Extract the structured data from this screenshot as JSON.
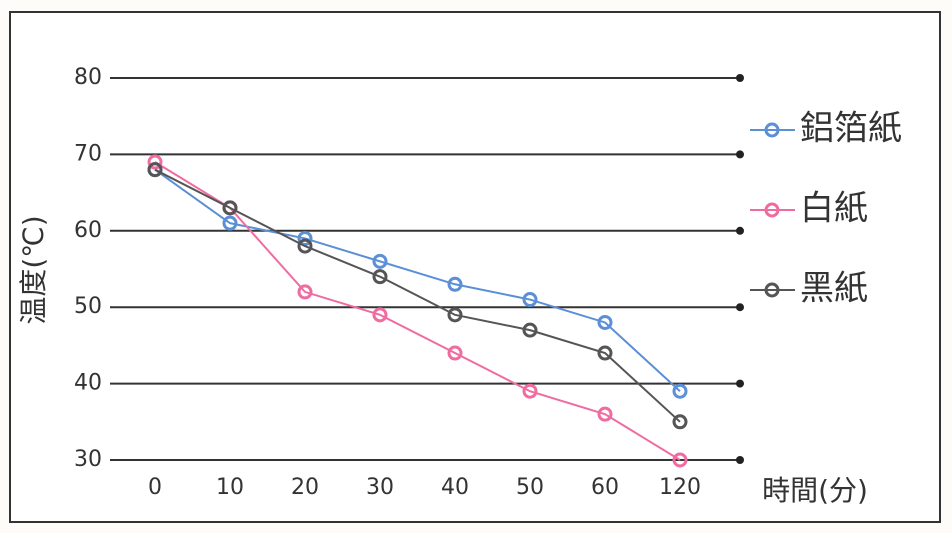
{
  "chart_data": {
    "type": "line",
    "x_label": "時間(分)",
    "y_label": "温度(℃)",
    "categories": [
      "0",
      "10",
      "20",
      "30",
      "40",
      "50",
      "60",
      "120"
    ],
    "series": [
      {
        "name": "鋁箔紙",
        "color": "#5b8fd6",
        "values": [
          68,
          61,
          59,
          56,
          53,
          51,
          48,
          39
        ]
      },
      {
        "name": "白紙",
        "color": "#f06ca0",
        "values": [
          69,
          63,
          52,
          49,
          44,
          39,
          36,
          30
        ]
      },
      {
        "name": "黑紙",
        "color": "#555555",
        "values": [
          68,
          63,
          58,
          54,
          49,
          47,
          44,
          35
        ]
      }
    ],
    "ylim": [
      30,
      80
    ],
    "yticks": [
      30,
      40,
      50,
      60,
      70,
      80
    ],
    "grid": true,
    "legend": "right"
  }
}
